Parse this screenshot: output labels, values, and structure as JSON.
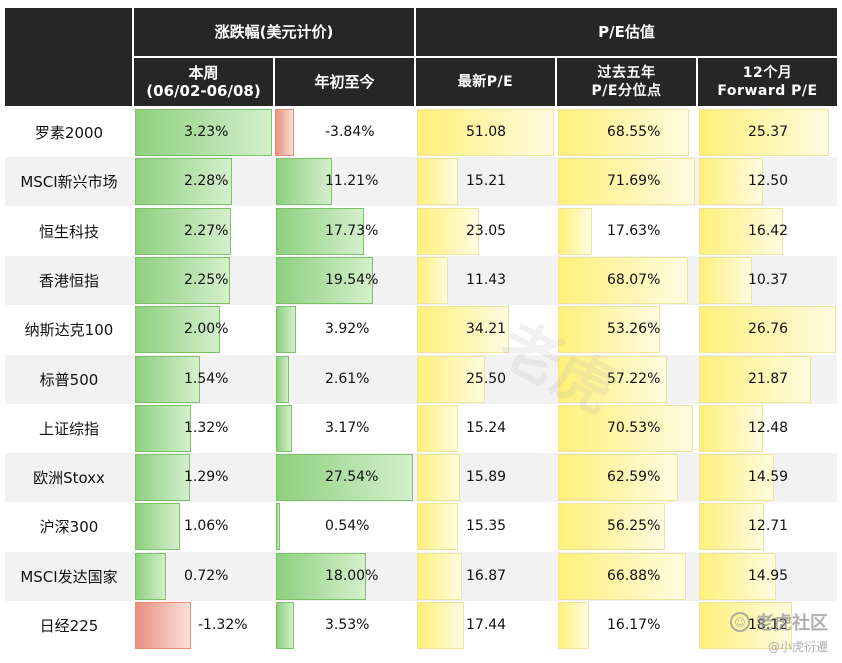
{
  "headers": {
    "group_change": "涨跌幅(美元计价)",
    "group_pe": "P/E估值",
    "week_line1": "本周",
    "week_line2": "(06/02-06/08)",
    "ytd": "年初至今",
    "latest_pe": "最新P/E",
    "pct_line1": "过去五年",
    "pct_line2": "P/E分位点",
    "fwd_line1": "12个月",
    "fwd_line2": "Forward P/E"
  },
  "rows": [
    {
      "name": "罗素2000",
      "week": "3.23%",
      "ytd": "-3.84%",
      "pe": "51.08",
      "pct": "68.55%",
      "fwd": "25.37"
    },
    {
      "name": "MSCI新兴市场",
      "week": "2.28%",
      "ytd": "11.21%",
      "pe": "15.21",
      "pct": "71.69%",
      "fwd": "12.50"
    },
    {
      "name": "恒生科技",
      "week": "2.27%",
      "ytd": "17.73%",
      "pe": "23.05",
      "pct": "17.63%",
      "fwd": "16.42"
    },
    {
      "name": "香港恒指",
      "week": "2.25%",
      "ytd": "19.54%",
      "pe": "11.43",
      "pct": "68.07%",
      "fwd": "10.37"
    },
    {
      "name": "纳斯达克100",
      "week": "2.00%",
      "ytd": "3.92%",
      "pe": "34.21",
      "pct": "53.26%",
      "fwd": "26.76"
    },
    {
      "name": "标普500",
      "week": "1.54%",
      "ytd": "2.61%",
      "pe": "25.50",
      "pct": "57.22%",
      "fwd": "21.87"
    },
    {
      "name": "上证综指",
      "week": "1.32%",
      "ytd": "3.17%",
      "pe": "15.24",
      "pct": "70.53%",
      "fwd": "12.48"
    },
    {
      "name": "欧洲Stoxx",
      "week": "1.29%",
      "ytd": "27.54%",
      "pe": "15.89",
      "pct": "62.59%",
      "fwd": "14.59"
    },
    {
      "name": "沪深300",
      "week": "1.06%",
      "ytd": "0.54%",
      "pe": "15.35",
      "pct": "56.25%",
      "fwd": "12.71"
    },
    {
      "name": "MSCI发达国家",
      "week": "0.72%",
      "ytd": "18.00%",
      "pe": "16.87",
      "pct": "66.88%",
      "fwd": "14.95"
    },
    {
      "name": "日经225",
      "week": "-1.32%",
      "ytd": "3.53%",
      "pe": "17.44",
      "pct": "16.17%",
      "fwd": "18.12"
    }
  ],
  "watermark": {
    "brand": "老虎社区",
    "handle": "@小虎衍遷"
  },
  "colors": {
    "header_bg": "#262626",
    "positive_bar": "#8ed07f",
    "negative_bar": "#e8907e",
    "pe_bar": "#fff07a"
  }
}
